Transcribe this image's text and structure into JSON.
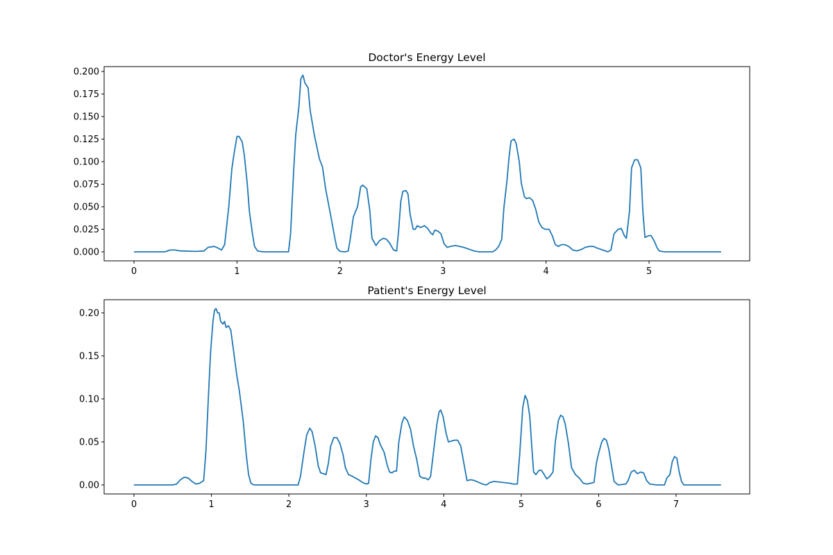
{
  "chart_data": [
    {
      "type": "line",
      "title": "Doctor's Energy Level",
      "color": "#1f77b4",
      "x": [
        0,
        0.3,
        0.35,
        0.4,
        0.45,
        0.6,
        0.68,
        0.72,
        0.78,
        0.82,
        0.85,
        0.88,
        0.92,
        0.95,
        0.97,
        1.0,
        1.02,
        1.05,
        1.07,
        1.1,
        1.12,
        1.15,
        1.17,
        1.2,
        1.25,
        1.5,
        1.52,
        1.55,
        1.57,
        1.6,
        1.62,
        1.64,
        1.66,
        1.69,
        1.71,
        1.75,
        1.8,
        1.83,
        1.86,
        1.91,
        1.95,
        1.97,
        2.0,
        2.05,
        2.08,
        2.1,
        2.13,
        2.17,
        2.2,
        2.22,
        2.26,
        2.29,
        2.31,
        2.35,
        2.38,
        2.42,
        2.45,
        2.48,
        2.52,
        2.55,
        2.57,
        2.59,
        2.61,
        2.64,
        2.66,
        2.68,
        2.71,
        2.73,
        2.75,
        2.78,
        2.82,
        2.85,
        2.88,
        2.9,
        2.92,
        2.95,
        2.98,
        3.01,
        3.04,
        3.07,
        3.12,
        3.2,
        3.3,
        3.35,
        3.48,
        3.51,
        3.54,
        3.57,
        3.59,
        3.62,
        3.64,
        3.66,
        3.69,
        3.71,
        3.74,
        3.76,
        3.79,
        3.81,
        3.84,
        3.87,
        3.9,
        3.93,
        3.96,
        3.99,
        4.03,
        4.06,
        4.09,
        4.12,
        4.15,
        4.18,
        4.22,
        4.26,
        4.3,
        4.35,
        4.38,
        4.42,
        4.46,
        4.5,
        4.55,
        4.6,
        4.63,
        4.66,
        4.7,
        4.73,
        4.76,
        4.78,
        4.81,
        4.83,
        4.86,
        4.89,
        4.92,
        4.94,
        4.96,
        5.0,
        5.02,
        5.05,
        5.08,
        5.1,
        5.15,
        5.7
      ],
      "values": [
        0,
        0,
        0.002,
        0.002,
        0.001,
        0.0005,
        0.001,
        0.005,
        0.006,
        0.004,
        0.002,
        0.008,
        0.05,
        0.092,
        0.108,
        0.128,
        0.128,
        0.122,
        0.108,
        0.075,
        0.045,
        0.02,
        0.006,
        0.001,
        0,
        0,
        0.02,
        0.09,
        0.13,
        0.16,
        0.192,
        0.196,
        0.187,
        0.182,
        0.157,
        0.13,
        0.103,
        0.094,
        0.07,
        0.04,
        0.015,
        0.004,
        0.0005,
        0,
        0.001,
        0.015,
        0.039,
        0.05,
        0.072,
        0.074,
        0.07,
        0.045,
        0.015,
        0.007,
        0.012,
        0.015,
        0.014,
        0.01,
        0.002,
        0.001,
        0.025,
        0.056,
        0.067,
        0.068,
        0.064,
        0.042,
        0.025,
        0.025,
        0.029,
        0.027,
        0.029,
        0.026,
        0.021,
        0.019,
        0.024,
        0.023,
        0.02,
        0.009,
        0.005,
        0.006,
        0.007,
        0.005,
        0.001,
        0,
        0,
        0.002,
        0.006,
        0.014,
        0.048,
        0.078,
        0.104,
        0.123,
        0.125,
        0.12,
        0.1,
        0.076,
        0.061,
        0.059,
        0.06,
        0.057,
        0.047,
        0.033,
        0.027,
        0.025,
        0.025,
        0.018,
        0.008,
        0.006,
        0.008,
        0.008,
        0.006,
        0.002,
        0.001,
        0.003,
        0.005,
        0.006,
        0.006,
        0.004,
        0.002,
        0,
        0.002,
        0.02,
        0.025,
        0.026,
        0.018,
        0.015,
        0.045,
        0.093,
        0.102,
        0.102,
        0.093,
        0.045,
        0.016,
        0.018,
        0.018,
        0.012,
        0.004,
        0.001,
        0,
        0
      ],
      "xlim": [
        -0.29,
        5.977
      ],
      "ylim": [
        -0.01,
        0.2054
      ],
      "xticks": [
        0,
        1,
        2,
        3,
        4,
        5
      ],
      "yticks": [
        {
          "value": 0,
          "label": "0.000"
        },
        {
          "value": 0.025,
          "label": "0.025"
        },
        {
          "value": 0.05,
          "label": "0.050"
        },
        {
          "value": 0.075,
          "label": "0.075"
        },
        {
          "value": 0.1,
          "label": "0.100"
        },
        {
          "value": 0.125,
          "label": "0.125"
        },
        {
          "value": 0.15,
          "label": "0.150"
        },
        {
          "value": 0.175,
          "label": "0.175"
        },
        {
          "value": 0.2,
          "label": "0.200"
        }
      ]
    },
    {
      "type": "line",
      "title": "Patient's Energy Level",
      "color": "#1f77b4",
      "x": [
        0,
        0.5,
        0.55,
        0.6,
        0.65,
        0.7,
        0.75,
        0.8,
        0.85,
        0.9,
        0.93,
        0.96,
        0.99,
        1.02,
        1.04,
        1.06,
        1.08,
        1.1,
        1.12,
        1.15,
        1.17,
        1.19,
        1.22,
        1.25,
        1.28,
        1.33,
        1.36,
        1.41,
        1.45,
        1.48,
        1.51,
        1.55,
        2.12,
        2.15,
        2.19,
        2.23,
        2.27,
        2.3,
        2.34,
        2.38,
        2.41,
        2.45,
        2.48,
        2.51,
        2.54,
        2.58,
        2.62,
        2.66,
        2.7,
        2.73,
        2.77,
        2.82,
        2.9,
        2.95,
        3.0,
        3.03,
        3.06,
        3.09,
        3.12,
        3.15,
        3.18,
        3.23,
        3.27,
        3.3,
        3.33,
        3.36,
        3.39,
        3.42,
        3.46,
        3.49,
        3.53,
        3.57,
        3.61,
        3.65,
        3.69,
        3.73,
        3.76,
        3.8,
        3.83,
        3.87,
        3.91,
        3.94,
        3.96,
        3.99,
        4.03,
        4.06,
        4.1,
        4.14,
        4.18,
        4.22,
        4.26,
        4.3,
        4.35,
        4.4,
        4.45,
        4.5,
        4.55,
        4.6,
        4.65,
        4.75,
        4.85,
        4.9,
        4.95,
        4.98,
        5.02,
        5.05,
        5.08,
        5.11,
        5.14,
        5.16,
        5.19,
        5.23,
        5.26,
        5.29,
        5.33,
        5.37,
        5.41,
        5.44,
        5.48,
        5.51,
        5.54,
        5.57,
        5.61,
        5.65,
        5.7,
        5.75,
        5.8,
        5.85,
        5.9,
        5.94,
        5.97,
        6.0,
        6.04,
        6.07,
        6.1,
        6.13,
        6.17,
        6.2,
        6.25,
        6.35,
        6.38,
        6.42,
        6.46,
        6.5,
        6.54,
        6.58,
        6.62,
        6.66,
        6.75,
        6.85,
        6.88,
        6.92,
        6.95,
        6.98,
        7.01,
        7.04,
        7.07,
        7.1,
        7.58
      ],
      "values": [
        0,
        0,
        0.001,
        0.006,
        0.009,
        0.008,
        0.004,
        0.001,
        0.002,
        0.005,
        0.04,
        0.1,
        0.155,
        0.19,
        0.203,
        0.205,
        0.2,
        0.2,
        0.19,
        0.187,
        0.19,
        0.183,
        0.185,
        0.18,
        0.16,
        0.126,
        0.11,
        0.075,
        0.035,
        0.012,
        0.002,
        0,
        0,
        0.01,
        0.035,
        0.058,
        0.066,
        0.062,
        0.045,
        0.022,
        0.014,
        0.013,
        0.012,
        0.025,
        0.045,
        0.055,
        0.055,
        0.048,
        0.035,
        0.02,
        0.012,
        0.01,
        0.006,
        0.003,
        0.001,
        0.002,
        0.03,
        0.05,
        0.057,
        0.055,
        0.047,
        0.038,
        0.023,
        0.015,
        0.014,
        0.016,
        0.016,
        0.05,
        0.072,
        0.079,
        0.075,
        0.065,
        0.045,
        0.03,
        0.01,
        0.008,
        0.008,
        0.006,
        0.01,
        0.04,
        0.07,
        0.085,
        0.087,
        0.08,
        0.06,
        0.05,
        0.051,
        0.052,
        0.052,
        0.045,
        0.025,
        0.005,
        0.006,
        0.005,
        0.003,
        0.001,
        0,
        0.003,
        0.004,
        0.003,
        0.002,
        0.001,
        0.001,
        0.035,
        0.09,
        0.104,
        0.098,
        0.08,
        0.04,
        0.015,
        0.012,
        0.017,
        0.017,
        0.013,
        0.007,
        0.01,
        0.015,
        0.05,
        0.075,
        0.081,
        0.079,
        0.07,
        0.048,
        0.02,
        0.012,
        0.008,
        0.002,
        0.001,
        0.002,
        0.003,
        0.025,
        0.037,
        0.05,
        0.054,
        0.052,
        0.042,
        0.02,
        0.004,
        0,
        0.001,
        0.005,
        0.015,
        0.017,
        0.013,
        0.015,
        0.014,
        0.005,
        0.001,
        0,
        0,
        0.008,
        0.012,
        0.027,
        0.033,
        0.031,
        0.015,
        0.004,
        0,
        0
      ],
      "xlim": [
        -0.385,
        7.95
      ],
      "ylim": [
        -0.0105,
        0.2153
      ],
      "xticks": [
        0,
        1,
        2,
        3,
        4,
        5,
        6,
        7
      ],
      "yticks": [
        {
          "value": 0,
          "label": "0.00"
        },
        {
          "value": 0.05,
          "label": "0.05"
        },
        {
          "value": 0.1,
          "label": "0.10"
        },
        {
          "value": 0.15,
          "label": "0.15"
        },
        {
          "value": 0.2,
          "label": "0.20"
        }
      ]
    }
  ]
}
